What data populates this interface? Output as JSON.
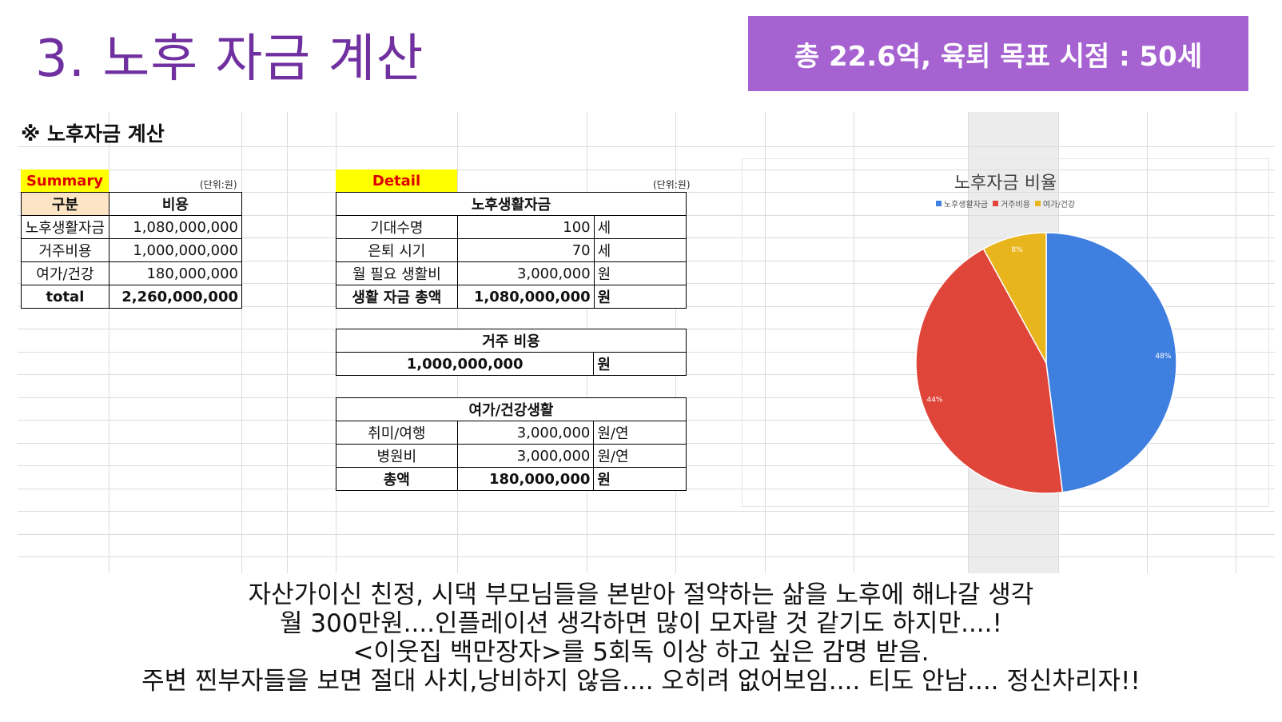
{
  "slide": {
    "title": "3. 노후 자금 계산",
    "banner": "총 22.6억, 육퇴 목표 시점 : 50세"
  },
  "sheet": {
    "title": "※ 노후자금 계산",
    "summary": {
      "tag": "Summary",
      "unit": "(단위:원)",
      "headers": [
        "구분",
        "비용"
      ],
      "rows": [
        [
          "노후생활자금",
          "1,080,000,000"
        ],
        [
          "거주비용",
          "1,000,000,000"
        ],
        [
          "여가/건강",
          "180,000,000"
        ]
      ],
      "total": [
        "total",
        "2,260,000,000"
      ]
    },
    "detail": {
      "tag": "Detail",
      "unit": "(단위:원)",
      "living": {
        "head": "노후생활자금",
        "rows": [
          [
            "기대수명",
            "100",
            "세"
          ],
          [
            "은퇴 시기",
            "70",
            "세"
          ],
          [
            "월 필요 생활비",
            "3,000,000",
            "원"
          ]
        ],
        "total": [
          "생활 자금 총액",
          "1,080,000,000",
          "원"
        ]
      },
      "housing": {
        "head": "거주 비용",
        "value": "1,000,000,000",
        "unit": "원"
      },
      "leisure": {
        "head": "여가/건강생활",
        "rows": [
          [
            "취미/여행",
            "3,000,000",
            "원/연"
          ],
          [
            "병원비",
            "3,000,000",
            "원/연"
          ]
        ],
        "total": [
          "총액",
          "180,000,000",
          "원"
        ]
      }
    }
  },
  "chart_data": {
    "type": "pie",
    "title": "노후자금 비율",
    "categories": [
      "노후생활자금",
      "거주비용",
      "여가/건강"
    ],
    "values": [
      48,
      44,
      8
    ],
    "labels": [
      "48%",
      "44%",
      "8%"
    ],
    "colors": [
      "#3f7fe0",
      "#e0453a",
      "#e8b51c"
    ],
    "legend_position": "top"
  },
  "caption": [
    "자산가이신 친정, 시댁 부모님들을 본받아 절약하는 삶을 노후에 해나갈 생각",
    "월 300만원....인플레이션 생각하면 많이 모자랄 것 같기도 하지만....!",
    "<이웃집 백만장자>를 5회독 이상 하고 싶은 감명 받음.",
    "주변 찐부자들을 보면 절대 사치,낭비하지 않음.... 오히려 없어보임.... 티도 안남.... 정신차리자!!"
  ]
}
